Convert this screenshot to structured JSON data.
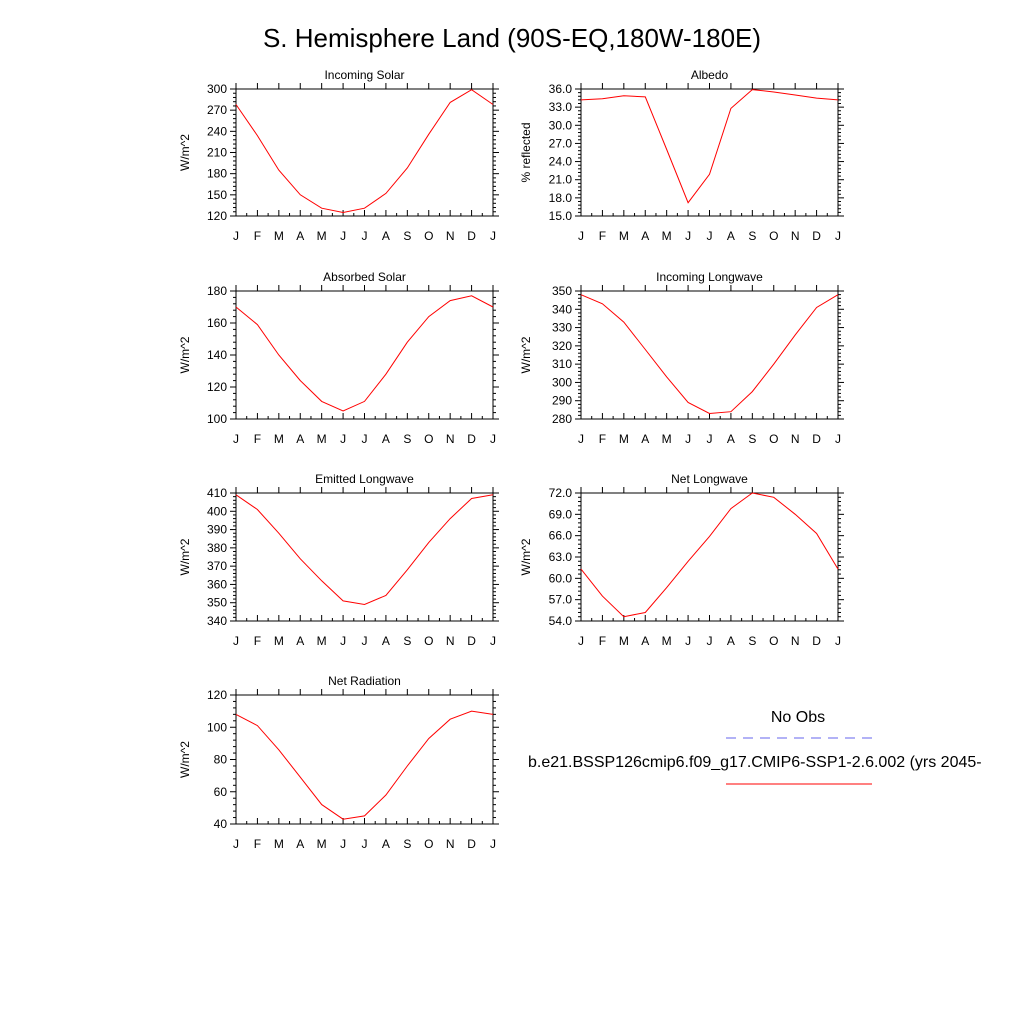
{
  "figure": {
    "title": "S. Hemisphere Land (90S-EQ,180W-180E)",
    "series_color": "#ff0000",
    "obs_color": "#6666ee"
  },
  "legend": {
    "obs_label": "No Obs",
    "model_label": "b.e21.BSSP126cmip6.f09_g17.CMIP6-SSP1-2.6.002 (yrs 2045-"
  },
  "chart_data": [
    {
      "type": "line",
      "title": "Incoming Solar",
      "ylabel": "W/m^2",
      "categories": [
        "J",
        "F",
        "M",
        "A",
        "M",
        "J",
        "J",
        "A",
        "S",
        "O",
        "N",
        "D",
        "J"
      ],
      "ylim": [
        120,
        300
      ],
      "yticks": [
        "300",
        "270",
        "240",
        "210",
        "180",
        "150",
        "120"
      ],
      "series": [
        {
          "name": "model",
          "values": [
            278,
            234,
            185,
            150,
            131,
            125,
            131,
            152,
            188,
            236,
            281,
            299,
            278
          ]
        }
      ]
    },
    {
      "type": "line",
      "title": "Albedo",
      "ylabel": "% reflected",
      "categories": [
        "J",
        "F",
        "M",
        "A",
        "M",
        "J",
        "J",
        "A",
        "S",
        "O",
        "N",
        "D",
        "J"
      ],
      "ylim": [
        15.0,
        36.0
      ],
      "yticks": [
        "36.0",
        "33.0",
        "30.0",
        "27.0",
        "24.0",
        "21.0",
        "18.0",
        "15.0"
      ],
      "series": [
        {
          "name": "model",
          "values": [
            34.2,
            34.4,
            34.9,
            34.7,
            26.0,
            17.2,
            21.9,
            32.8,
            35.9,
            35.5,
            35.0,
            34.5,
            34.2
          ]
        }
      ]
    },
    {
      "type": "line",
      "title": "Absorbed Solar",
      "ylabel": "W/m^2",
      "categories": [
        "J",
        "F",
        "M",
        "A",
        "M",
        "J",
        "J",
        "A",
        "S",
        "O",
        "N",
        "D",
        "J"
      ],
      "ylim": [
        100,
        180
      ],
      "yticks": [
        "180",
        "160",
        "140",
        "120",
        "100"
      ],
      "series": [
        {
          "name": "model",
          "values": [
            170,
            159,
            140,
            124,
            111,
            105,
            111,
            128,
            148,
            164,
            174,
            177,
            170
          ]
        }
      ]
    },
    {
      "type": "line",
      "title": "Incoming Longwave",
      "ylabel": "W/m^2",
      "categories": [
        "J",
        "F",
        "M",
        "A",
        "M",
        "J",
        "J",
        "A",
        "S",
        "O",
        "N",
        "D",
        "J"
      ],
      "ylim": [
        280,
        350
      ],
      "yticks": [
        "350",
        "340",
        "330",
        "320",
        "310",
        "300",
        "290",
        "280"
      ],
      "series": [
        {
          "name": "model",
          "values": [
            348,
            343,
            333,
            318,
            303,
            289,
            283,
            284,
            295,
            310,
            326,
            341,
            348
          ]
        }
      ]
    },
    {
      "type": "line",
      "title": "Emitted Longwave",
      "ylabel": "W/m^2",
      "categories": [
        "J",
        "F",
        "M",
        "A",
        "M",
        "J",
        "J",
        "A",
        "S",
        "O",
        "N",
        "D",
        "J"
      ],
      "ylim": [
        340,
        410
      ],
      "yticks": [
        "410",
        "400",
        "390",
        "380",
        "370",
        "360",
        "350",
        "340"
      ],
      "series": [
        {
          "name": "model",
          "values": [
            409,
            401,
            388,
            374,
            362,
            351,
            349,
            354,
            368,
            383,
            396,
            407,
            409
          ]
        }
      ]
    },
    {
      "type": "line",
      "title": "Net Longwave",
      "ylabel": "W/m^2",
      "categories": [
        "J",
        "F",
        "M",
        "A",
        "M",
        "J",
        "J",
        "A",
        "S",
        "O",
        "N",
        "D",
        "J"
      ],
      "ylim": [
        54.0,
        72.0
      ],
      "yticks": [
        "72.0",
        "69.0",
        "66.0",
        "63.0",
        "60.0",
        "57.0",
        "54.0"
      ],
      "series": [
        {
          "name": "model",
          "values": [
            61.3,
            57.5,
            54.6,
            55.2,
            58.7,
            62.4,
            65.9,
            69.8,
            72.0,
            71.4,
            69.0,
            66.3,
            61.3
          ]
        }
      ]
    },
    {
      "type": "line",
      "title": "Net Radiation",
      "ylabel": "W/m^2",
      "categories": [
        "J",
        "F",
        "M",
        "A",
        "M",
        "J",
        "J",
        "A",
        "S",
        "O",
        "N",
        "D",
        "J"
      ],
      "ylim": [
        40,
        120
      ],
      "yticks": [
        "120",
        "100",
        "80",
        "60",
        "40"
      ],
      "series": [
        {
          "name": "model",
          "values": [
            108,
            101,
            86,
            69,
            52,
            43,
            45,
            58,
            76,
            93,
            105,
            110,
            108
          ]
        }
      ]
    }
  ]
}
